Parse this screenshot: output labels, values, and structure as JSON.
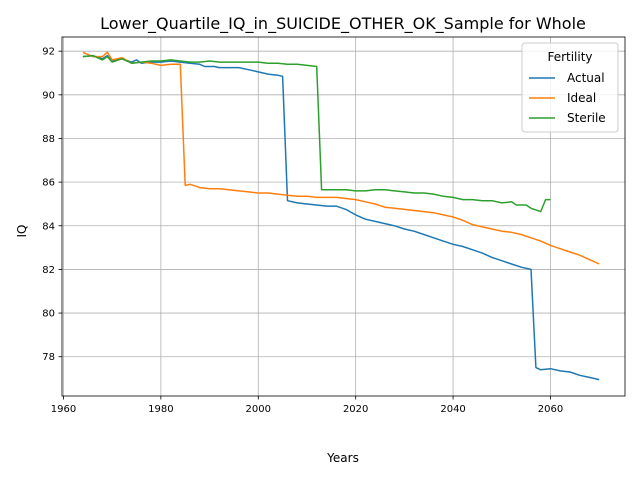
{
  "chart_data": {
    "type": "line",
    "title": "Lower_Quartile_IQ_in_SUICIDE_OTHER_OK_Sample for Whole",
    "xlabel": "Years",
    "ylabel": "IQ",
    "xlim": [
      1959.7,
      2075.3
    ],
    "ylim": [
      76.2,
      92.65
    ],
    "xticks": [
      1960,
      1980,
      2000,
      2020,
      2040,
      2060
    ],
    "yticks": [
      78,
      80,
      82,
      84,
      86,
      88,
      90,
      92
    ],
    "grid": true,
    "legend": {
      "title": "Fertility",
      "placement": "top-right"
    },
    "series": [
      {
        "name": "Actual",
        "color": "#1f77b4",
        "points": [
          [
            1964,
            91.75
          ],
          [
            1966,
            91.8
          ],
          [
            1968,
            91.65
          ],
          [
            1969,
            91.8
          ],
          [
            1970,
            91.55
          ],
          [
            1972,
            91.65
          ],
          [
            1974,
            91.5
          ],
          [
            1975,
            91.6
          ],
          [
            1976,
            91.45
          ],
          [
            1978,
            91.5
          ],
          [
            1980,
            91.5
          ],
          [
            1982,
            91.55
          ],
          [
            1984,
            91.5
          ],
          [
            1986,
            91.45
          ],
          [
            1988,
            91.4
          ],
          [
            1989,
            91.3
          ],
          [
            1991,
            91.3
          ],
          [
            1992,
            91.25
          ],
          [
            1994,
            91.25
          ],
          [
            1996,
            91.25
          ],
          [
            1998,
            91.15
          ],
          [
            2000,
            91.05
          ],
          [
            2002,
            90.95
          ],
          [
            2004,
            90.9
          ],
          [
            2005,
            90.85
          ],
          [
            2006,
            85.15
          ],
          [
            2008,
            85.05
          ],
          [
            2010,
            85.0
          ],
          [
            2012,
            84.95
          ],
          [
            2014,
            84.9
          ],
          [
            2016,
            84.9
          ],
          [
            2018,
            84.75
          ],
          [
            2020,
            84.5
          ],
          [
            2022,
            84.3
          ],
          [
            2024,
            84.2
          ],
          [
            2026,
            84.1
          ],
          [
            2028,
            84.0
          ],
          [
            2030,
            83.85
          ],
          [
            2032,
            83.75
          ],
          [
            2034,
            83.6
          ],
          [
            2036,
            83.45
          ],
          [
            2038,
            83.3
          ],
          [
            2040,
            83.15
          ],
          [
            2042,
            83.05
          ],
          [
            2044,
            82.9
          ],
          [
            2046,
            82.75
          ],
          [
            2048,
            82.55
          ],
          [
            2050,
            82.4
          ],
          [
            2052,
            82.25
          ],
          [
            2054,
            82.1
          ],
          [
            2056,
            82.0
          ],
          [
            2057,
            77.5
          ],
          [
            2058,
            77.4
          ],
          [
            2060,
            77.45
          ],
          [
            2062,
            77.35
          ],
          [
            2064,
            77.3
          ],
          [
            2066,
            77.15
          ],
          [
            2068,
            77.05
          ],
          [
            2070,
            76.95
          ]
        ]
      },
      {
        "name": "Ideal",
        "color": "#ff7f0e",
        "points": [
          [
            1964,
            91.95
          ],
          [
            1966,
            91.75
          ],
          [
            1968,
            91.75
          ],
          [
            1969,
            91.95
          ],
          [
            1970,
            91.6
          ],
          [
            1972,
            91.7
          ],
          [
            1974,
            91.45
          ],
          [
            1976,
            91.5
          ],
          [
            1978,
            91.45
          ],
          [
            1980,
            91.35
          ],
          [
            1982,
            91.4
          ],
          [
            1984,
            91.4
          ],
          [
            1985,
            85.85
          ],
          [
            1986,
            85.9
          ],
          [
            1988,
            85.75
          ],
          [
            1990,
            85.7
          ],
          [
            1992,
            85.7
          ],
          [
            1994,
            85.65
          ],
          [
            1996,
            85.6
          ],
          [
            1998,
            85.55
          ],
          [
            2000,
            85.5
          ],
          [
            2002,
            85.5
          ],
          [
            2004,
            85.45
          ],
          [
            2006,
            85.4
          ],
          [
            2008,
            85.35
          ],
          [
            2010,
            85.35
          ],
          [
            2012,
            85.3
          ],
          [
            2014,
            85.3
          ],
          [
            2016,
            85.3
          ],
          [
            2018,
            85.25
          ],
          [
            2020,
            85.2
          ],
          [
            2022,
            85.1
          ],
          [
            2024,
            85.0
          ],
          [
            2026,
            84.85
          ],
          [
            2028,
            84.8
          ],
          [
            2030,
            84.75
          ],
          [
            2032,
            84.7
          ],
          [
            2034,
            84.65
          ],
          [
            2036,
            84.6
          ],
          [
            2038,
            84.5
          ],
          [
            2040,
            84.4
          ],
          [
            2042,
            84.25
          ],
          [
            2044,
            84.05
          ],
          [
            2046,
            83.95
          ],
          [
            2048,
            83.85
          ],
          [
            2050,
            83.75
          ],
          [
            2052,
            83.7
          ],
          [
            2054,
            83.6
          ],
          [
            2056,
            83.45
          ],
          [
            2058,
            83.3
          ],
          [
            2060,
            83.1
          ],
          [
            2062,
            82.95
          ],
          [
            2064,
            82.8
          ],
          [
            2066,
            82.65
          ],
          [
            2068,
            82.45
          ],
          [
            2070,
            82.25
          ]
        ]
      },
      {
        "name": "Sterile",
        "color": "#2ca02c",
        "points": [
          [
            1964,
            91.75
          ],
          [
            1966,
            91.8
          ],
          [
            1968,
            91.6
          ],
          [
            1969,
            91.75
          ],
          [
            1970,
            91.5
          ],
          [
            1972,
            91.65
          ],
          [
            1974,
            91.45
          ],
          [
            1976,
            91.5
          ],
          [
            1978,
            91.55
          ],
          [
            1980,
            91.55
          ],
          [
            1982,
            91.6
          ],
          [
            1984,
            91.55
          ],
          [
            1986,
            91.5
          ],
          [
            1988,
            91.5
          ],
          [
            1990,
            91.55
          ],
          [
            1992,
            91.5
          ],
          [
            1994,
            91.5
          ],
          [
            1996,
            91.5
          ],
          [
            1998,
            91.5
          ],
          [
            2000,
            91.5
          ],
          [
            2002,
            91.45
          ],
          [
            2004,
            91.45
          ],
          [
            2006,
            91.4
          ],
          [
            2008,
            91.4
          ],
          [
            2010,
            91.35
          ],
          [
            2012,
            91.3
          ],
          [
            2013,
            85.65
          ],
          [
            2016,
            85.65
          ],
          [
            2018,
            85.65
          ],
          [
            2020,
            85.6
          ],
          [
            2022,
            85.6
          ],
          [
            2024,
            85.65
          ],
          [
            2026,
            85.65
          ],
          [
            2028,
            85.6
          ],
          [
            2030,
            85.55
          ],
          [
            2032,
            85.5
          ],
          [
            2034,
            85.5
          ],
          [
            2036,
            85.45
          ],
          [
            2038,
            85.35
          ],
          [
            2040,
            85.3
          ],
          [
            2042,
            85.2
          ],
          [
            2044,
            85.2
          ],
          [
            2046,
            85.15
          ],
          [
            2048,
            85.15
          ],
          [
            2050,
            85.05
          ],
          [
            2052,
            85.1
          ],
          [
            2053,
            84.95
          ],
          [
            2055,
            84.95
          ],
          [
            2056,
            84.8
          ],
          [
            2058,
            84.65
          ],
          [
            2059,
            85.2
          ],
          [
            2060,
            85.2
          ]
        ]
      }
    ]
  }
}
